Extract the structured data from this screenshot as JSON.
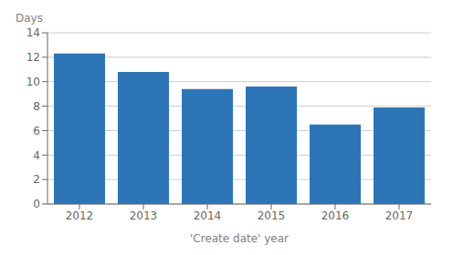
{
  "chart_data": {
    "type": "bar",
    "categories": [
      "2012",
      "2013",
      "2014",
      "2015",
      "2016",
      "2017"
    ],
    "values": [
      12.3,
      10.8,
      9.4,
      9.6,
      6.5,
      7.9
    ],
    "color": "#2E75B6",
    "xlabel": "'Create date' year",
    "ylabel": "Days",
    "ylim": [
      0,
      14
    ],
    "yticks": [
      0,
      2,
      4,
      6,
      8,
      10,
      12,
      14
    ],
    "grid": true
  }
}
